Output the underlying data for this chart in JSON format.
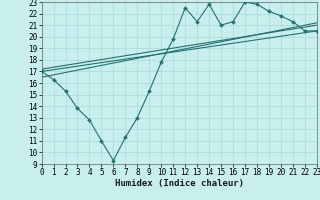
{
  "title": "",
  "xlabel": "Humidex (Indice chaleur)",
  "ylabel": "",
  "bg_color": "#c8eeee",
  "line_color": "#267070",
  "grid_color": "#aad8d8",
  "xmin": 0,
  "xmax": 23,
  "ymin": 9,
  "ymax": 23,
  "xticks": [
    0,
    1,
    2,
    3,
    4,
    5,
    6,
    7,
    8,
    9,
    10,
    11,
    12,
    13,
    14,
    15,
    16,
    17,
    18,
    19,
    20,
    21,
    22,
    23
  ],
  "yticks": [
    9,
    10,
    11,
    12,
    13,
    14,
    15,
    16,
    17,
    18,
    19,
    20,
    21,
    22,
    23
  ],
  "line1_x": [
    0,
    1,
    2,
    3,
    4,
    5,
    6,
    7,
    8,
    9,
    10,
    11,
    12,
    13,
    14,
    15,
    16,
    17,
    18,
    19,
    20,
    21,
    22,
    23
  ],
  "line1_y": [
    17.0,
    16.3,
    15.3,
    13.8,
    12.8,
    11.0,
    9.3,
    11.3,
    13.0,
    15.3,
    17.8,
    19.8,
    22.5,
    21.3,
    22.8,
    21.0,
    21.3,
    23.0,
    22.8,
    22.2,
    21.8,
    21.3,
    20.5,
    20.5
  ],
  "line2_x": [
    0,
    23
  ],
  "line2_y": [
    17.0,
    20.5
  ],
  "line3_x": [
    0,
    23
  ],
  "line3_y": [
    17.2,
    21.0
  ],
  "line4_x": [
    0,
    23
  ],
  "line4_y": [
    16.5,
    21.2
  ],
  "label_fontsize": 5.5,
  "xlabel_fontsize": 6.5
}
